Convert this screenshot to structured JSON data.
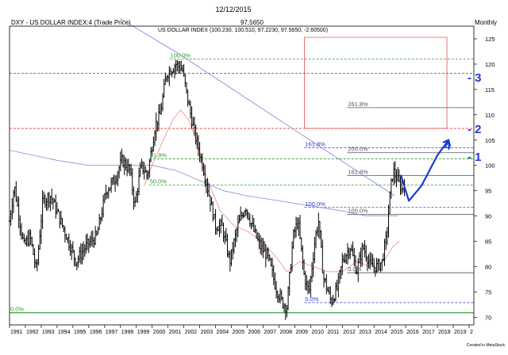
{
  "header": {
    "date": "12/12/2015",
    "last_price": "97.5650",
    "period": "Monthly"
  },
  "legend": {
    "name": "DXY - US DOLLAR INDEX:4 (Trade Price)",
    "ohlc": "US DOLLAR INDEX (100.230, 100.510, 97.2230, 97.5650, -2.60500)"
  },
  "credit": "Created in MetaStock",
  "colors": {
    "price": "#000000",
    "fib_green": "#2e9a2e",
    "fib_red": "#e03a3a",
    "fib_blue": "#3434d0",
    "fib_gray": "#555555",
    "trendline": "#7d7dd8",
    "ma_red": "#ee8a8a",
    "ma_blue": "#8c8cd8",
    "annotation": "#1a38d8"
  },
  "chart_data": {
    "type": "ohlc",
    "title": "DXY - US DOLLAR INDEX:4 (Trade Price)",
    "period": "Monthly",
    "x_tick_labels": [
      "1991",
      "1992",
      "1993",
      "1994",
      "1995",
      "1996",
      "1997",
      "1998",
      "1999",
      "2000",
      "2001",
      "2002",
      "2003",
      "2004",
      "2005",
      "2006",
      "2007",
      "2008",
      "2009",
      "2010",
      "2011",
      "2012",
      "2013",
      "2014",
      "2015",
      "2016",
      "2017",
      "2018",
      "2019",
      "2"
    ],
    "xlim": [
      1991.0,
      2020.3
    ],
    "y_ticks": [
      70,
      75,
      80,
      85,
      90,
      95,
      100,
      105,
      110,
      115,
      120,
      125
    ],
    "ylim": [
      68.5,
      127.5
    ],
    "price_path": [
      [
        1991.0,
        89
      ],
      [
        1991.3,
        96
      ],
      [
        1991.9,
        84
      ],
      [
        1992.3,
        86
      ],
      [
        1992.7,
        79
      ],
      [
        1993.1,
        93
      ],
      [
        1993.6,
        94
      ],
      [
        1994.1,
        90
      ],
      [
        1994.6,
        86
      ],
      [
        1995.2,
        81
      ],
      [
        1995.8,
        84
      ],
      [
        1996.5,
        86
      ],
      [
        1997.1,
        95
      ],
      [
        1997.6,
        97
      ],
      [
        1998.1,
        101
      ],
      [
        1998.6,
        99
      ],
      [
        1998.9,
        92
      ],
      [
        1999.3,
        100
      ],
      [
        1999.7,
        98
      ],
      [
        2000.2,
        108
      ],
      [
        2000.5,
        110
      ],
      [
        2000.9,
        118
      ],
      [
        2001.5,
        120
      ],
      [
        2001.9,
        119
      ],
      [
        2002.3,
        112
      ],
      [
        2002.7,
        106
      ],
      [
        2003.2,
        100
      ],
      [
        2003.6,
        94
      ],
      [
        2004.0,
        88
      ],
      [
        2004.4,
        88
      ],
      [
        2004.9,
        81
      ],
      [
        2005.4,
        88
      ],
      [
        2005.9,
        92
      ],
      [
        2006.3,
        88
      ],
      [
        2006.8,
        84
      ],
      [
        2007.3,
        82
      ],
      [
        2007.8,
        76
      ],
      [
        2008.2,
        73
      ],
      [
        2008.5,
        72
      ],
      [
        2008.9,
        86
      ],
      [
        2009.2,
        89
      ],
      [
        2009.6,
        78
      ],
      [
        2009.9,
        75
      ],
      [
        2010.3,
        86
      ],
      [
        2010.5,
        89
      ],
      [
        2010.8,
        78
      ],
      [
        2011.3,
        73
      ],
      [
        2011.7,
        76
      ],
      [
        2012.0,
        81
      ],
      [
        2012.5,
        84
      ],
      [
        2012.9,
        79
      ],
      [
        2013.3,
        84
      ],
      [
        2013.8,
        80
      ],
      [
        2014.2,
        80
      ],
      [
        2014.5,
        81
      ],
      [
        2014.8,
        86
      ],
      [
        2015.0,
        94
      ],
      [
        2015.2,
        99
      ],
      [
        2015.5,
        97
      ],
      [
        2015.8,
        95
      ],
      [
        2015.95,
        98
      ]
    ],
    "moving_averages": [
      {
        "color": "red",
        "points": [
          [
            1999.5,
            96
          ],
          [
            2000.0,
            100
          ],
          [
            2000.7,
            105
          ],
          [
            2001.3,
            109
          ],
          [
            2001.8,
            111
          ],
          [
            2002.3,
            109
          ],
          [
            2002.9,
            104
          ],
          [
            2003.5,
            97
          ],
          [
            2004.3,
            91
          ],
          [
            2005.2,
            88
          ],
          [
            2006.0,
            87
          ],
          [
            2006.9,
            85
          ],
          [
            2007.8,
            82
          ],
          [
            2008.5,
            79
          ],
          [
            2009.3,
            81
          ],
          [
            2010.2,
            80
          ],
          [
            2011.1,
            79
          ],
          [
            2012.0,
            79
          ],
          [
            2012.9,
            81
          ],
          [
            2013.8,
            80
          ],
          [
            2014.6,
            81
          ],
          [
            2015.2,
            84
          ],
          [
            2015.6,
            85
          ]
        ]
      },
      {
        "color": "blue",
        "points": [
          [
            1991.0,
            103
          ],
          [
            1992.5,
            102
          ],
          [
            1994.0,
            101
          ],
          [
            1996.0,
            100
          ],
          [
            1998.0,
            100
          ],
          [
            2000.0,
            100
          ],
          [
            2001.5,
            99
          ],
          [
            2003.0,
            97
          ],
          [
            2004.5,
            95
          ],
          [
            2006.0,
            94
          ],
          [
            2008.0,
            93
          ],
          [
            2010.0,
            92
          ],
          [
            2012.0,
            91
          ],
          [
            2013.5,
            90
          ],
          [
            2015.5,
            90
          ]
        ]
      }
    ],
    "trendline": {
      "from": [
        2001.7,
        122
      ],
      "to": [
        2015.3,
        94
      ]
    },
    "fib_levels": [
      {
        "label": "100.0%",
        "value": 121.0,
        "x_from": 2001.1,
        "color": "green"
      },
      {
        "label": "61.8%",
        "value": 101.3,
        "x_from": 1999.8,
        "color": "green"
      },
      {
        "label": "50.0%",
        "value": 96.1,
        "x_from": 1999.8,
        "color": "green"
      },
      {
        "label": "0.0%",
        "value": 70.9,
        "x_from": 1991.0,
        "color": "green"
      },
      {
        "label": "",
        "value": 118.2,
        "x_from": 1991.0,
        "color": "red"
      },
      {
        "label": "",
        "value": 107.3,
        "x_from": 1991.0,
        "color": "red"
      },
      {
        "label": "261.8%",
        "value": 111.4,
        "x_from": 2012.3,
        "color": "gray"
      },
      {
        "label": "200.0%",
        "value": 102.5,
        "x_from": 2012.3,
        "color": "gray"
      },
      {
        "label": "161.8%",
        "value": 98.0,
        "x_from": 2012.3,
        "color": "gray"
      },
      {
        "label": "100.0%",
        "value": 90.3,
        "x_from": 2012.3,
        "color": "gray"
      },
      {
        "label": "0.0%",
        "value": 78.8,
        "x_from": 2012.3,
        "color": "gray"
      },
      {
        "label": "161.8%",
        "value": 103.5,
        "x_from": 2009.6,
        "color": "blue"
      },
      {
        "label": "100.0%",
        "value": 91.7,
        "x_from": 2009.6,
        "color": "blue"
      },
      {
        "label": "0.0%",
        "value": 72.9,
        "x_from": 2009.6,
        "color": "blue"
      }
    ],
    "red_box": {
      "x": [
        2009.6,
        2018.6
      ],
      "y": [
        107.3,
        125.3
      ]
    },
    "projection": [
      [
        2015.7,
        98
      ],
      [
        2016.2,
        93
      ],
      [
        2017.0,
        96
      ],
      [
        2018.0,
        102
      ],
      [
        2018.7,
        105
      ]
    ],
    "annotation_marks": [
      {
        "label": "- 3",
        "value": 117.5
      },
      {
        "label": "- 2",
        "value": 107.3
      },
      {
        "label": "- 1",
        "value": 101.8
      }
    ],
    "arrow_label": "4"
  }
}
